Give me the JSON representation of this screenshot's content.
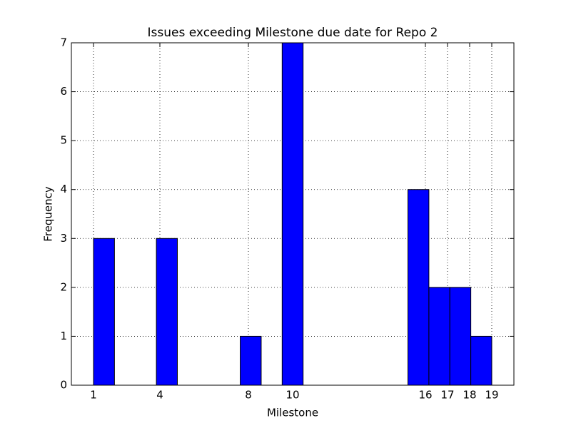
{
  "chart_data": {
    "type": "histogram",
    "title": "Issues exceeding Milestone due date for Repo 2",
    "x_label": "Milestone",
    "y_label": "Frequency",
    "bins": [
      1,
      1.947368,
      2.894737,
      3.842105,
      4.789474,
      5.736842,
      6.684211,
      7.631579,
      8.578947,
      9.526316,
      10.473684,
      11.421053,
      12.368421,
      13.315789,
      14.263158,
      15.210526,
      16.157895,
      17.105263,
      18.052632,
      19
    ],
    "counts": [
      3,
      0,
      0,
      3,
      0,
      0,
      0,
      1,
      0,
      7,
      0,
      0,
      0,
      0,
      0,
      4,
      2,
      2,
      1
    ],
    "color": "#0000ff",
    "xlim": [
      0,
      20
    ],
    "xticks": [
      1,
      4,
      8,
      10,
      16,
      17,
      18,
      19
    ],
    "ylim": [
      0,
      7
    ],
    "yticks": [
      0,
      1,
      2,
      3,
      4,
      5,
      6,
      7
    ],
    "grid": true
  }
}
